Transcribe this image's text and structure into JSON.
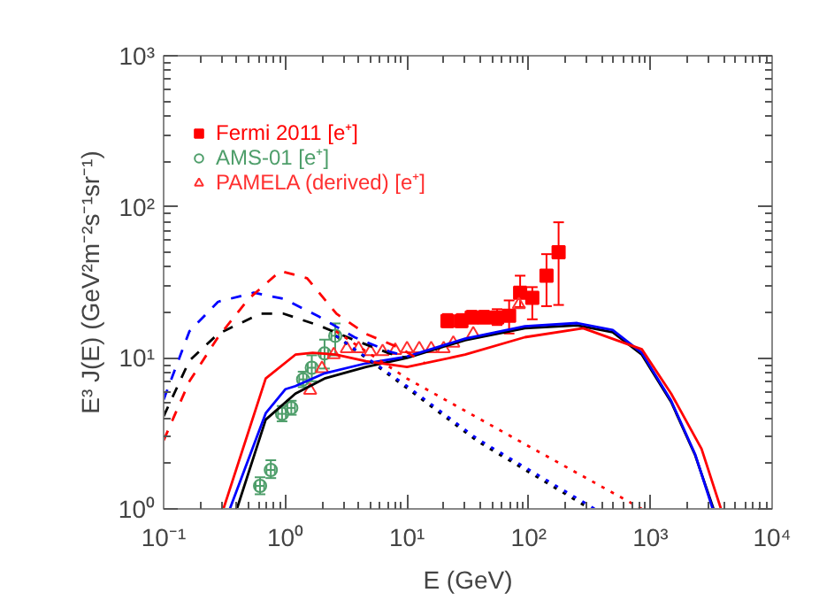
{
  "chart_data": {
    "type": "line",
    "xlabel": "E (GeV)",
    "ylabel": "E³ J(E) (GeV²m⁻²s⁻¹sr⁻¹)",
    "log": "xy",
    "xlim": [
      0.1,
      10000
    ],
    "ylim": [
      1,
      1000
    ],
    "xticks": [
      {
        "value": 0.1,
        "label": "10⁻¹"
      },
      {
        "value": 1,
        "label": "10⁰"
      },
      {
        "value": 10,
        "label": "10¹"
      },
      {
        "value": 100,
        "label": "10²"
      },
      {
        "value": 1000,
        "label": "10³"
      },
      {
        "value": 10000,
        "label": "10⁴"
      }
    ],
    "yticks": [
      {
        "value": 1,
        "label": "10⁰"
      },
      {
        "value": 10,
        "label": "10¹"
      },
      {
        "value": 100,
        "label": "10²"
      },
      {
        "value": 1000,
        "label": "10³"
      }
    ],
    "grid": false,
    "legend": "top left",
    "series": [
      {
        "name": "Fermi 2011 [e⁺]",
        "type": "scatter",
        "marker": "square",
        "color": "#ff0000",
        "x": [
          21.5,
          28,
          34,
          43,
          55,
          69,
          85,
          107,
          140,
          176
        ],
        "values": [
          17.5,
          17.5,
          18.5,
          18.5,
          18.5,
          19,
          27,
          25,
          35,
          50
        ],
        "errors": [
          [
            16,
            19.5
          ],
          [
            16,
            19.5
          ],
          [
            17,
            20.5
          ],
          [
            17,
            20.5
          ],
          [
            16.5,
            21
          ],
          [
            14.5,
            24
          ],
          [
            21.7,
            35
          ],
          [
            18,
            29.4
          ],
          [
            22,
            48.6
          ],
          [
            22.4,
            79
          ]
        ]
      },
      {
        "name": "AMS-01 [e⁺]",
        "type": "scatter",
        "marker": "circle",
        "color": "#4e9e6a",
        "x": [
          0.62,
          0.76,
          0.94,
          1.12,
          1.4,
          1.65,
          2.1,
          2.57
        ],
        "values": [
          1.42,
          1.81,
          4.26,
          4.66,
          7.2,
          8.6,
          10.7,
          14.0
        ],
        "errors": [
          [
            1.25,
            1.62
          ],
          [
            1.6,
            2.1
          ],
          [
            3.8,
            4.8
          ],
          [
            4.2,
            5.2
          ],
          [
            6.4,
            8.1
          ],
          [
            7.0,
            10.4
          ],
          [
            8.5,
            13.2
          ],
          [
            10.4,
            16.9
          ]
        ],
        "xerrors": [
          [
            0.57,
            0.67
          ],
          [
            0.7,
            0.82
          ],
          [
            0.87,
            1.01
          ],
          [
            1.04,
            1.2
          ],
          [
            1.3,
            1.5
          ],
          [
            1.53,
            1.77
          ],
          [
            1.95,
            2.25
          ],
          [
            2.39,
            2.75
          ]
        ]
      },
      {
        "name": "PAMELA (derived) [e⁺]",
        "type": "scatter",
        "marker": "triangle",
        "color": "#ff3030",
        "x": [
          1.6,
          2.0,
          2.5,
          3.2,
          4.0,
          5.0,
          6.3,
          8.0,
          10,
          12.6,
          15.8,
          20,
          24,
          35,
          83
        ],
        "values": [
          6.1,
          8.5,
          10.5,
          11.5,
          11.5,
          11.0,
          11.0,
          11.2,
          11.5,
          11.5,
          11.5,
          11.5,
          12.5,
          14.4,
          22.5
        ]
      },
      {
        "color": "#000000",
        "line_style": "solid",
        "x": [
          0.4,
          0.69,
          1.21,
          2.1,
          4.6,
          10,
          30,
          93,
          250,
          490,
          850,
          1480,
          2330,
          3300
        ],
        "values": [
          1.0,
          3.9,
          5.8,
          7.3,
          8.7,
          10.0,
          13.1,
          15.7,
          16.4,
          14.8,
          10.5,
          5.1,
          2.27,
          1.0
        ]
      },
      {
        "color": "#0000ff",
        "line_style": "solid",
        "x": [
          0.35,
          0.69,
          1.0,
          1.21,
          2.1,
          4.6,
          10,
          30,
          93,
          250,
          490,
          850,
          1480,
          2330,
          3250
        ],
        "values": [
          1.0,
          4.3,
          6.2,
          6.5,
          7.9,
          9.2,
          10.2,
          13.4,
          16.2,
          17.0,
          15.3,
          10.8,
          5.2,
          2.3,
          1.0
        ]
      },
      {
        "color": "#ff0000",
        "line_style": "solid",
        "x": [
          0.31,
          0.69,
          1.21,
          1.68,
          2.6,
          4.6,
          10,
          30,
          93,
          280,
          850,
          1480,
          2630,
          3800
        ],
        "values": [
          1.0,
          7.3,
          10.5,
          10.8,
          10.5,
          9.5,
          8.7,
          10.5,
          13.7,
          15.7,
          11.4,
          5.8,
          2.5,
          1.0
        ]
      },
      {
        "color": "#000000",
        "line_style": "dashed",
        "x": [
          0.1,
          0.163,
          0.28,
          0.62,
          0.97,
          1.88,
          3.7,
          7.2,
          10
        ],
        "values": [
          4.1,
          9.6,
          14.4,
          19.6,
          19.6,
          16.4,
          13.1,
          10.7,
          10.0
        ]
      },
      {
        "color": "#0000ff",
        "line_style": "dashed",
        "x": [
          0.1,
          0.163,
          0.28,
          0.55,
          0.97,
          1.88,
          3.7,
          7.2,
          10
        ],
        "values": [
          5.3,
          15,
          23.5,
          27,
          24.6,
          18.8,
          13.7,
          11,
          10.2
        ]
      },
      {
        "color": "#ff0000",
        "line_style": "dashed",
        "x": [
          0.1,
          0.163,
          0.28,
          0.5,
          0.91,
          1.51,
          2.63,
          4.6,
          9.0,
          14
        ],
        "values": [
          2.84,
          7.0,
          13.7,
          24.6,
          37.6,
          33.7,
          19.6,
          14.4,
          11.5,
          9.2
        ]
      },
      {
        "color": "#000000",
        "line_style": "dotted",
        "x": [
          2.6,
          10,
          38,
          320
        ],
        "values": [
          14,
          6.3,
          2.8,
          1.0
        ]
      },
      {
        "color": "#0000ff",
        "line_style": "dotted",
        "x": [
          2.6,
          10,
          38,
          350
        ],
        "values": [
          14,
          6.5,
          2.9,
          1.0
        ]
      },
      {
        "color": "#ff0000",
        "line_style": "dotted",
        "x": [
          2.6,
          10,
          100,
          850
        ],
        "values": [
          15,
          7.3,
          2.6,
          1.0
        ]
      }
    ]
  }
}
